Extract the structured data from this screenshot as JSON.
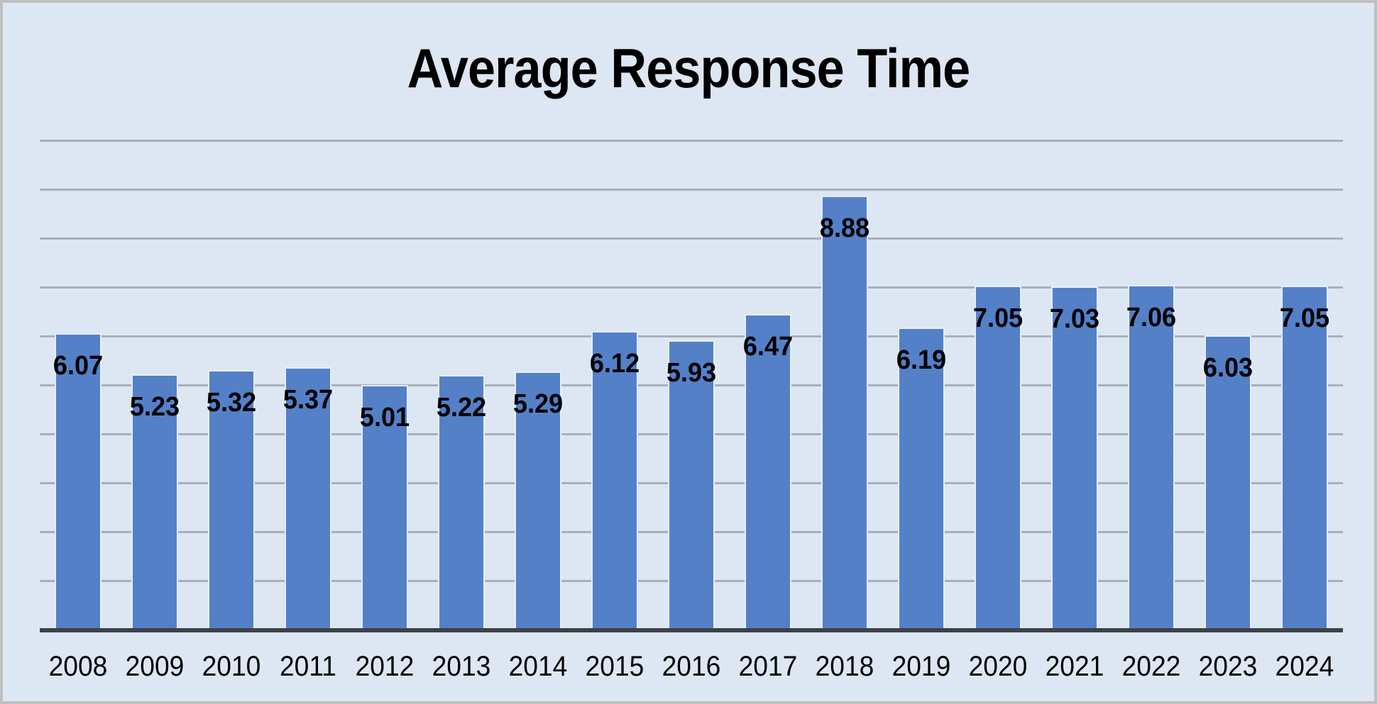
{
  "window": {
    "background_color": "#dce7f3",
    "border_color": "#bfbfbf"
  },
  "chart_data": {
    "type": "bar",
    "title": "Average Response Time",
    "categories": [
      "2008",
      "2009",
      "2010",
      "2011",
      "2012",
      "2013",
      "2014",
      "2015",
      "2016",
      "2017",
      "2018",
      "2019",
      "2020",
      "2021",
      "2022",
      "2023",
      "2024"
    ],
    "values": [
      6.07,
      5.23,
      5.32,
      5.37,
      5.01,
      5.22,
      5.29,
      6.12,
      5.93,
      6.47,
      8.88,
      6.19,
      7.05,
      7.03,
      7.06,
      6.03,
      7.05
    ],
    "data_labels": [
      "6.07",
      "5.23",
      "5.32",
      "5.37",
      "5.01",
      "5.22",
      "5.29",
      "6.12",
      "5.93",
      "6.47",
      "8.88",
      "6.19",
      "7.05",
      "7.03",
      "7.06",
      "6.03",
      "7.05"
    ],
    "data_label_position": "inside-end",
    "xlabel": "",
    "ylabel": "",
    "ylim": [
      0,
      10
    ],
    "gridline_step": 1,
    "grid": true,
    "y_axis_tick_labels_visible": false,
    "legend": "none",
    "colors": {
      "bar": "#5480c8",
      "bar_edge": "#e6eefa",
      "gridline": "#a9afb9",
      "axis_line": "#3e4147",
      "text": "#000000",
      "background": "#dce7f3"
    }
  }
}
